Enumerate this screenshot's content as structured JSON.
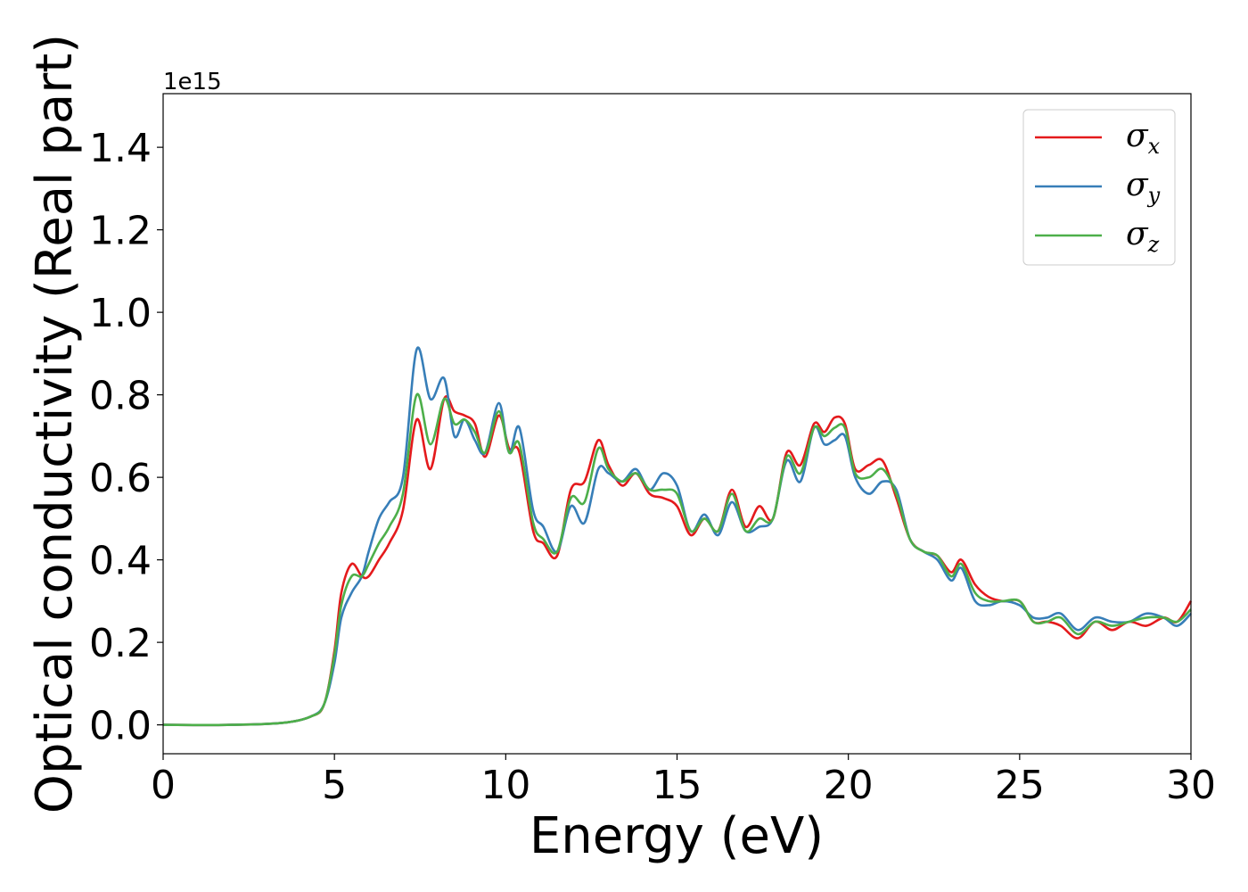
{
  "chart_data": {
    "type": "line",
    "title": "",
    "xlabel": "Energy (eV)",
    "ylabel": "Optical conductivity (Real part)",
    "y_offset_label": "1e15",
    "xlim": [
      0,
      30
    ],
    "ylim": [
      -0.07,
      1.53
    ],
    "xticks": [
      0,
      5,
      10,
      15,
      20,
      25,
      30
    ],
    "xtick_labels": [
      "0",
      "5",
      "10",
      "15",
      "20",
      "25",
      "30"
    ],
    "yticks": [
      0.0,
      0.2,
      0.4,
      0.6,
      0.8,
      1.0,
      1.2,
      1.4
    ],
    "ytick_labels": [
      "0.0",
      "0.2",
      "0.4",
      "0.6",
      "0.8",
      "1.0",
      "1.2",
      "1.4"
    ],
    "grid": false,
    "legend_position": "top-right",
    "series": [
      {
        "name": "σx",
        "symbol": "σ",
        "subscript": "x",
        "color": "#e41a1c",
        "x": [
          0,
          2,
          3.5,
          4.3,
          4.7,
          5.0,
          5.2,
          5.5,
          5.8,
          6.0,
          6.3,
          6.6,
          7.0,
          7.4,
          7.8,
          8.2,
          8.5,
          8.8,
          9.1,
          9.4,
          9.8,
          10.1,
          10.4,
          10.8,
          11.1,
          11.5,
          11.9,
          12.3,
          12.7,
          13.0,
          13.4,
          13.8,
          14.2,
          14.6,
          15.0,
          15.4,
          15.8,
          16.2,
          16.6,
          17.0,
          17.4,
          17.8,
          18.2,
          18.6,
          19.0,
          19.3,
          19.6,
          19.9,
          20.2,
          20.6,
          21.0,
          21.4,
          21.8,
          22.2,
          22.6,
          23.0,
          23.3,
          23.7,
          24.1,
          24.5,
          25.0,
          25.4,
          25.8,
          26.2,
          26.7,
          27.2,
          27.7,
          28.2,
          28.7,
          29.2,
          29.6,
          30.0
        ],
        "y": [
          0.0,
          0.0,
          0.005,
          0.02,
          0.05,
          0.18,
          0.32,
          0.39,
          0.36,
          0.36,
          0.4,
          0.44,
          0.52,
          0.74,
          0.62,
          0.79,
          0.76,
          0.75,
          0.73,
          0.65,
          0.75,
          0.67,
          0.66,
          0.47,
          0.44,
          0.41,
          0.57,
          0.59,
          0.69,
          0.63,
          0.58,
          0.61,
          0.56,
          0.55,
          0.53,
          0.46,
          0.5,
          0.47,
          0.57,
          0.48,
          0.53,
          0.5,
          0.66,
          0.63,
          0.73,
          0.71,
          0.745,
          0.73,
          0.62,
          0.63,
          0.64,
          0.55,
          0.45,
          0.42,
          0.41,
          0.37,
          0.4,
          0.34,
          0.31,
          0.3,
          0.3,
          0.25,
          0.25,
          0.24,
          0.21,
          0.25,
          0.23,
          0.25,
          0.24,
          0.26,
          0.25,
          0.3
        ]
      },
      {
        "name": "σy",
        "symbol": "σ",
        "subscript": "y",
        "color": "#377eb8",
        "x": [
          0,
          2,
          3.5,
          4.3,
          4.7,
          5.0,
          5.2,
          5.5,
          5.8,
          6.0,
          6.3,
          6.6,
          7.0,
          7.4,
          7.8,
          8.2,
          8.5,
          8.8,
          9.1,
          9.4,
          9.8,
          10.1,
          10.4,
          10.8,
          11.1,
          11.5,
          11.9,
          12.3,
          12.7,
          13.0,
          13.4,
          13.8,
          14.2,
          14.6,
          15.0,
          15.4,
          15.8,
          16.2,
          16.6,
          17.0,
          17.4,
          17.8,
          18.2,
          18.6,
          19.0,
          19.3,
          19.6,
          19.9,
          20.2,
          20.6,
          21.0,
          21.4,
          21.8,
          22.2,
          22.6,
          23.0,
          23.3,
          23.7,
          24.1,
          24.5,
          25.0,
          25.4,
          25.8,
          26.2,
          26.7,
          27.2,
          27.7,
          28.2,
          28.7,
          29.2,
          29.6,
          30.0
        ],
        "y": [
          0.0,
          0.0,
          0.005,
          0.02,
          0.05,
          0.15,
          0.26,
          0.32,
          0.36,
          0.42,
          0.5,
          0.54,
          0.6,
          0.91,
          0.79,
          0.84,
          0.7,
          0.74,
          0.69,
          0.66,
          0.78,
          0.66,
          0.72,
          0.52,
          0.48,
          0.42,
          0.53,
          0.49,
          0.62,
          0.61,
          0.59,
          0.62,
          0.57,
          0.61,
          0.58,
          0.47,
          0.51,
          0.46,
          0.54,
          0.47,
          0.48,
          0.5,
          0.64,
          0.59,
          0.72,
          0.68,
          0.69,
          0.7,
          0.6,
          0.56,
          0.59,
          0.57,
          0.45,
          0.42,
          0.4,
          0.35,
          0.38,
          0.3,
          0.29,
          0.3,
          0.29,
          0.26,
          0.26,
          0.27,
          0.23,
          0.26,
          0.25,
          0.25,
          0.27,
          0.26,
          0.24,
          0.27
        ]
      },
      {
        "name": "σz",
        "symbol": "σ",
        "subscript": "z",
        "color": "#4daf4a",
        "x": [
          0,
          2,
          3.5,
          4.3,
          4.7,
          5.0,
          5.2,
          5.5,
          5.8,
          6.0,
          6.3,
          6.6,
          7.0,
          7.4,
          7.8,
          8.2,
          8.5,
          8.8,
          9.1,
          9.4,
          9.8,
          10.1,
          10.4,
          10.8,
          11.1,
          11.5,
          11.9,
          12.3,
          12.7,
          13.0,
          13.4,
          13.8,
          14.2,
          14.6,
          15.0,
          15.4,
          15.8,
          16.2,
          16.6,
          17.0,
          17.4,
          17.8,
          18.2,
          18.6,
          19.0,
          19.3,
          19.6,
          19.9,
          20.2,
          20.6,
          21.0,
          21.4,
          21.8,
          22.2,
          22.6,
          23.0,
          23.3,
          23.7,
          24.1,
          24.5,
          25.0,
          25.4,
          25.8,
          26.2,
          26.7,
          27.2,
          27.7,
          28.2,
          28.7,
          29.2,
          29.6,
          30.0
        ],
        "y": [
          0.0,
          0.0,
          0.005,
          0.02,
          0.05,
          0.17,
          0.29,
          0.36,
          0.36,
          0.39,
          0.44,
          0.48,
          0.56,
          0.8,
          0.68,
          0.79,
          0.73,
          0.74,
          0.71,
          0.66,
          0.76,
          0.66,
          0.68,
          0.49,
          0.45,
          0.42,
          0.55,
          0.54,
          0.67,
          0.62,
          0.59,
          0.61,
          0.57,
          0.57,
          0.56,
          0.47,
          0.5,
          0.47,
          0.56,
          0.47,
          0.5,
          0.5,
          0.65,
          0.61,
          0.72,
          0.7,
          0.72,
          0.72,
          0.61,
          0.6,
          0.62,
          0.56,
          0.45,
          0.42,
          0.41,
          0.36,
          0.39,
          0.32,
          0.3,
          0.3,
          0.3,
          0.25,
          0.25,
          0.26,
          0.22,
          0.25,
          0.24,
          0.25,
          0.26,
          0.26,
          0.25,
          0.28
        ]
      }
    ]
  }
}
